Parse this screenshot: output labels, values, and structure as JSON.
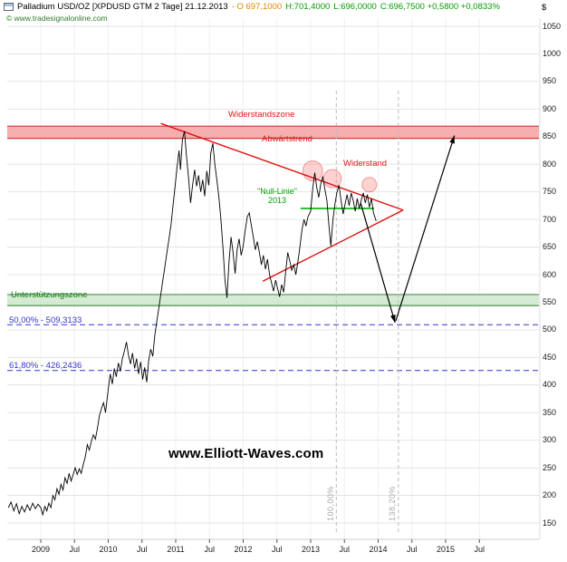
{
  "window": {
    "title": "Palladium USD/OZ [XPDUSD GTM  2 Tage] 21.12.2013",
    "quote_open": "- O 697,1000",
    "quote_high": "H:701,4000",
    "quote_low": "L:696,0000",
    "quote_close": "C:696,7500 +0,5800 +0,0833%",
    "copyright": "© www.tradesignalonline.com",
    "currency_symbol": "$",
    "watermark": "www.Elliott-Waves.com"
  },
  "annotations": {
    "resistance_zone_label": "Widerstandszone",
    "downtrend_label": "Abwärtstrend",
    "resistance_label": "Widerstand",
    "null_line_label": "\"Null-Linie\"",
    "null_line_year": "2013",
    "support_zone_label": "Unterstützungszone",
    "fib_50_label": "50,00% - 509,3133",
    "fib_618_label": "61,80% - 426,2436",
    "time_100_label": "100,00%",
    "time_138_label": "138,20%"
  },
  "colors": {
    "trend_red": "#e01010",
    "fib_blue": "#3434cc",
    "null_line_green": "#00b300",
    "up_green": "#089a08",
    "open_orange": "#d98a00",
    "copyright_green": "#2e7d2e"
  },
  "chart_data": {
    "type": "line",
    "instrument": "Palladium USD/OZ (XPDUSD GTM, 2 Tage)",
    "date": "21.12.2013",
    "open": 697.1,
    "high": 701.4,
    "low": 696.0,
    "close": 696.75,
    "change": 0.58,
    "change_pct": 0.0833,
    "ylim": [
      130,
      1070
    ],
    "xlim": [
      2008.5,
      2016.2
    ],
    "y_ticks": [
      1050,
      1000,
      950,
      900,
      850,
      800,
      750,
      700,
      650,
      600,
      550,
      500,
      450,
      400,
      350,
      300,
      250,
      200,
      150
    ],
    "x_ticks": [
      [
        2009,
        "2009"
      ],
      [
        2009.5,
        "Jul"
      ],
      [
        2010,
        "2010"
      ],
      [
        2010.5,
        "Jul"
      ],
      [
        2011,
        "2011"
      ],
      [
        2011.5,
        "Jul"
      ],
      [
        2012,
        "2012"
      ],
      [
        2012.5,
        "Jul"
      ],
      [
        2013,
        "2013"
      ],
      [
        2013.5,
        "Jul"
      ],
      [
        2014,
        "2014"
      ],
      [
        2014.5,
        "Jul"
      ],
      [
        2015,
        "2015"
      ],
      [
        2015.5,
        "Jul"
      ]
    ],
    "zones": [
      {
        "name": "Widerstandszone",
        "from": 847,
        "to": 869,
        "fill": "#f5a0a0",
        "edge": "#d03a3a"
      },
      {
        "name": "Unterstützungszone",
        "from": 544,
        "to": 564,
        "fill": "#cfe8cc",
        "edge": "#4e8f4e"
      }
    ],
    "fib_levels": [
      {
        "pct": "50,00%",
        "value": 509.3133
      },
      {
        "pct": "61,80%",
        "value": 426.2436
      }
    ],
    "time_levels": [
      {
        "pct": "100,00%",
        "t": 2013.38
      },
      {
        "pct": "138,20%",
        "t": 2014.3
      }
    ],
    "trendlines": [
      {
        "name": "Abwärtstrend",
        "from": [
          2010.78,
          874
        ],
        "to": [
          2014.37,
          717
        ]
      },
      {
        "name": "Dreieck-Unterkante",
        "from": [
          2012.29,
          588
        ],
        "to": [
          2014.37,
          717
        ]
      }
    ],
    "null_line": {
      "price": 720,
      "from": 2012.85,
      "to": 2013.94
    },
    "projection_arrows": [
      {
        "from": [
          2013.74,
          730
        ],
        "to": [
          2014.25,
          513
        ]
      },
      {
        "from": [
          2014.26,
          516
        ],
        "to": [
          2015.13,
          852
        ]
      }
    ],
    "highlight_circles": [
      {
        "t": 2013.03,
        "price": 788,
        "r": 11
      },
      {
        "t": 2013.32,
        "price": 774,
        "r": 10
      },
      {
        "t": 2013.87,
        "price": 763,
        "r": 8
      }
    ],
    "series": [
      {
        "name": "XPDUSD Close",
        "color": "#000000",
        "points": [
          [
            2008.52,
            178
          ],
          [
            2008.56,
            188
          ],
          [
            2008.6,
            172
          ],
          [
            2008.64,
            185
          ],
          [
            2008.68,
            167
          ],
          [
            2008.72,
            180
          ],
          [
            2008.76,
            170
          ],
          [
            2008.8,
            183
          ],
          [
            2008.84,
            173
          ],
          [
            2008.88,
            186
          ],
          [
            2008.92,
            176
          ],
          [
            2008.96,
            184
          ],
          [
            2009,
            178
          ],
          [
            2009.03,
            165
          ],
          [
            2009.06,
            180
          ],
          [
            2009.09,
            172
          ],
          [
            2009.12,
            186
          ],
          [
            2009.15,
            178
          ],
          [
            2009.18,
            200
          ],
          [
            2009.21,
            192
          ],
          [
            2009.24,
            212
          ],
          [
            2009.27,
            202
          ],
          [
            2009.3,
            220
          ],
          [
            2009.33,
            210
          ],
          [
            2009.36,
            232
          ],
          [
            2009.39,
            222
          ],
          [
            2009.42,
            240
          ],
          [
            2009.45,
            226
          ],
          [
            2009.48,
            238
          ],
          [
            2009.51,
            250
          ],
          [
            2009.54,
            238
          ],
          [
            2009.57,
            248
          ],
          [
            2009.6,
            240
          ],
          [
            2009.63,
            256
          ],
          [
            2009.66,
            270
          ],
          [
            2009.69,
            292
          ],
          [
            2009.72,
            282
          ],
          [
            2009.75,
            298
          ],
          [
            2009.78,
            310
          ],
          [
            2009.81,
            302
          ],
          [
            2009.84,
            322
          ],
          [
            2009.87,
            345
          ],
          [
            2009.9,
            358
          ],
          [
            2009.93,
            368
          ],
          [
            2009.96,
            350
          ],
          [
            2010,
            392
          ],
          [
            2010.03,
            420
          ],
          [
            2010.06,
            402
          ],
          [
            2010.09,
            430
          ],
          [
            2010.12,
            415
          ],
          [
            2010.15,
            440
          ],
          [
            2010.18,
            425
          ],
          [
            2010.21,
            448
          ],
          [
            2010.24,
            462
          ],
          [
            2010.27,
            478
          ],
          [
            2010.3,
            455
          ],
          [
            2010.33,
            438
          ],
          [
            2010.36,
            458
          ],
          [
            2010.39,
            430
          ],
          [
            2010.42,
            448
          ],
          [
            2010.45,
            420
          ],
          [
            2010.48,
            442
          ],
          [
            2010.51,
            410
          ],
          [
            2010.54,
            432
          ],
          [
            2010.57,
            405
          ],
          [
            2010.6,
            445
          ],
          [
            2010.63,
            465
          ],
          [
            2010.66,
            452
          ],
          [
            2010.69,
            490
          ],
          [
            2010.72,
            515
          ],
          [
            2010.75,
            540
          ],
          [
            2010.78,
            565
          ],
          [
            2010.81,
            590
          ],
          [
            2010.84,
            615
          ],
          [
            2010.87,
            640
          ],
          [
            2010.9,
            665
          ],
          [
            2010.93,
            690
          ],
          [
            2010.96,
            725
          ],
          [
            2010.99,
            760
          ],
          [
            2011.02,
            795
          ],
          [
            2011.05,
            825
          ],
          [
            2011.07,
            790
          ],
          [
            2011.1,
            845
          ],
          [
            2011.13,
            860
          ],
          [
            2011.16,
            815
          ],
          [
            2011.19,
            775
          ],
          [
            2011.22,
            730
          ],
          [
            2011.25,
            762
          ],
          [
            2011.28,
            790
          ],
          [
            2011.31,
            760
          ],
          [
            2011.34,
            780
          ],
          [
            2011.37,
            750
          ],
          [
            2011.4,
            772
          ],
          [
            2011.43,
            742
          ],
          [
            2011.46,
            788
          ],
          [
            2011.49,
            762
          ],
          [
            2011.52,
            820
          ],
          [
            2011.55,
            838
          ],
          [
            2011.58,
            800
          ],
          [
            2011.61,
            772
          ],
          [
            2011.64,
            740
          ],
          [
            2011.67,
            700
          ],
          [
            2011.7,
            648
          ],
          [
            2011.73,
            590
          ],
          [
            2011.76,
            558
          ],
          [
            2011.79,
            625
          ],
          [
            2011.82,
            668
          ],
          [
            2011.85,
            640
          ],
          [
            2011.88,
            602
          ],
          [
            2011.91,
            645
          ],
          [
            2011.94,
            665
          ],
          [
            2011.97,
            635
          ],
          [
            2012,
            652
          ],
          [
            2012.03,
            680
          ],
          [
            2012.06,
            705
          ],
          [
            2012.09,
            712
          ],
          [
            2012.12,
            690
          ],
          [
            2012.15,
            668
          ],
          [
            2012.18,
            645
          ],
          [
            2012.21,
            660
          ],
          [
            2012.24,
            640
          ],
          [
            2012.27,
            618
          ],
          [
            2012.3,
            635
          ],
          [
            2012.33,
            610
          ],
          [
            2012.36,
            628
          ],
          [
            2012.39,
            600
          ],
          [
            2012.42,
            585
          ],
          [
            2012.45,
            570
          ],
          [
            2012.48,
            590
          ],
          [
            2012.51,
            575
          ],
          [
            2012.54,
            560
          ],
          [
            2012.57,
            582
          ],
          [
            2012.6,
            568
          ],
          [
            2012.63,
            605
          ],
          [
            2012.66,
            640
          ],
          [
            2012.69,
            625
          ],
          [
            2012.72,
            608
          ],
          [
            2012.75,
            618
          ],
          [
            2012.78,
            600
          ],
          [
            2012.81,
            622
          ],
          [
            2012.84,
            650
          ],
          [
            2012.87,
            680
          ],
          [
            2012.9,
            700
          ],
          [
            2012.93,
            688
          ],
          [
            2012.96,
            705
          ],
          [
            2013,
            715
          ],
          [
            2013.03,
            755
          ],
          [
            2013.06,
            785
          ],
          [
            2013.09,
            758
          ],
          [
            2013.12,
            740
          ],
          [
            2013.15,
            765
          ],
          [
            2013.18,
            778
          ],
          [
            2013.21,
            755
          ],
          [
            2013.24,
            735
          ],
          [
            2013.27,
            690
          ],
          [
            2013.3,
            652
          ],
          [
            2013.33,
            700
          ],
          [
            2013.36,
            728
          ],
          [
            2013.39,
            750
          ],
          [
            2013.42,
            762
          ],
          [
            2013.45,
            735
          ],
          [
            2013.48,
            710
          ],
          [
            2013.51,
            728
          ],
          [
            2013.54,
            745
          ],
          [
            2013.57,
            725
          ],
          [
            2013.6,
            748
          ],
          [
            2013.63,
            735
          ],
          [
            2013.66,
            715
          ],
          [
            2013.69,
            738
          ],
          [
            2013.72,
            720
          ],
          [
            2013.75,
            735
          ],
          [
            2013.78,
            748
          ],
          [
            2013.81,
            730
          ],
          [
            2013.84,
            745
          ],
          [
            2013.87,
            722
          ],
          [
            2013.9,
            738
          ],
          [
            2013.93,
            712
          ],
          [
            2013.97,
            697
          ]
        ]
      }
    ]
  }
}
